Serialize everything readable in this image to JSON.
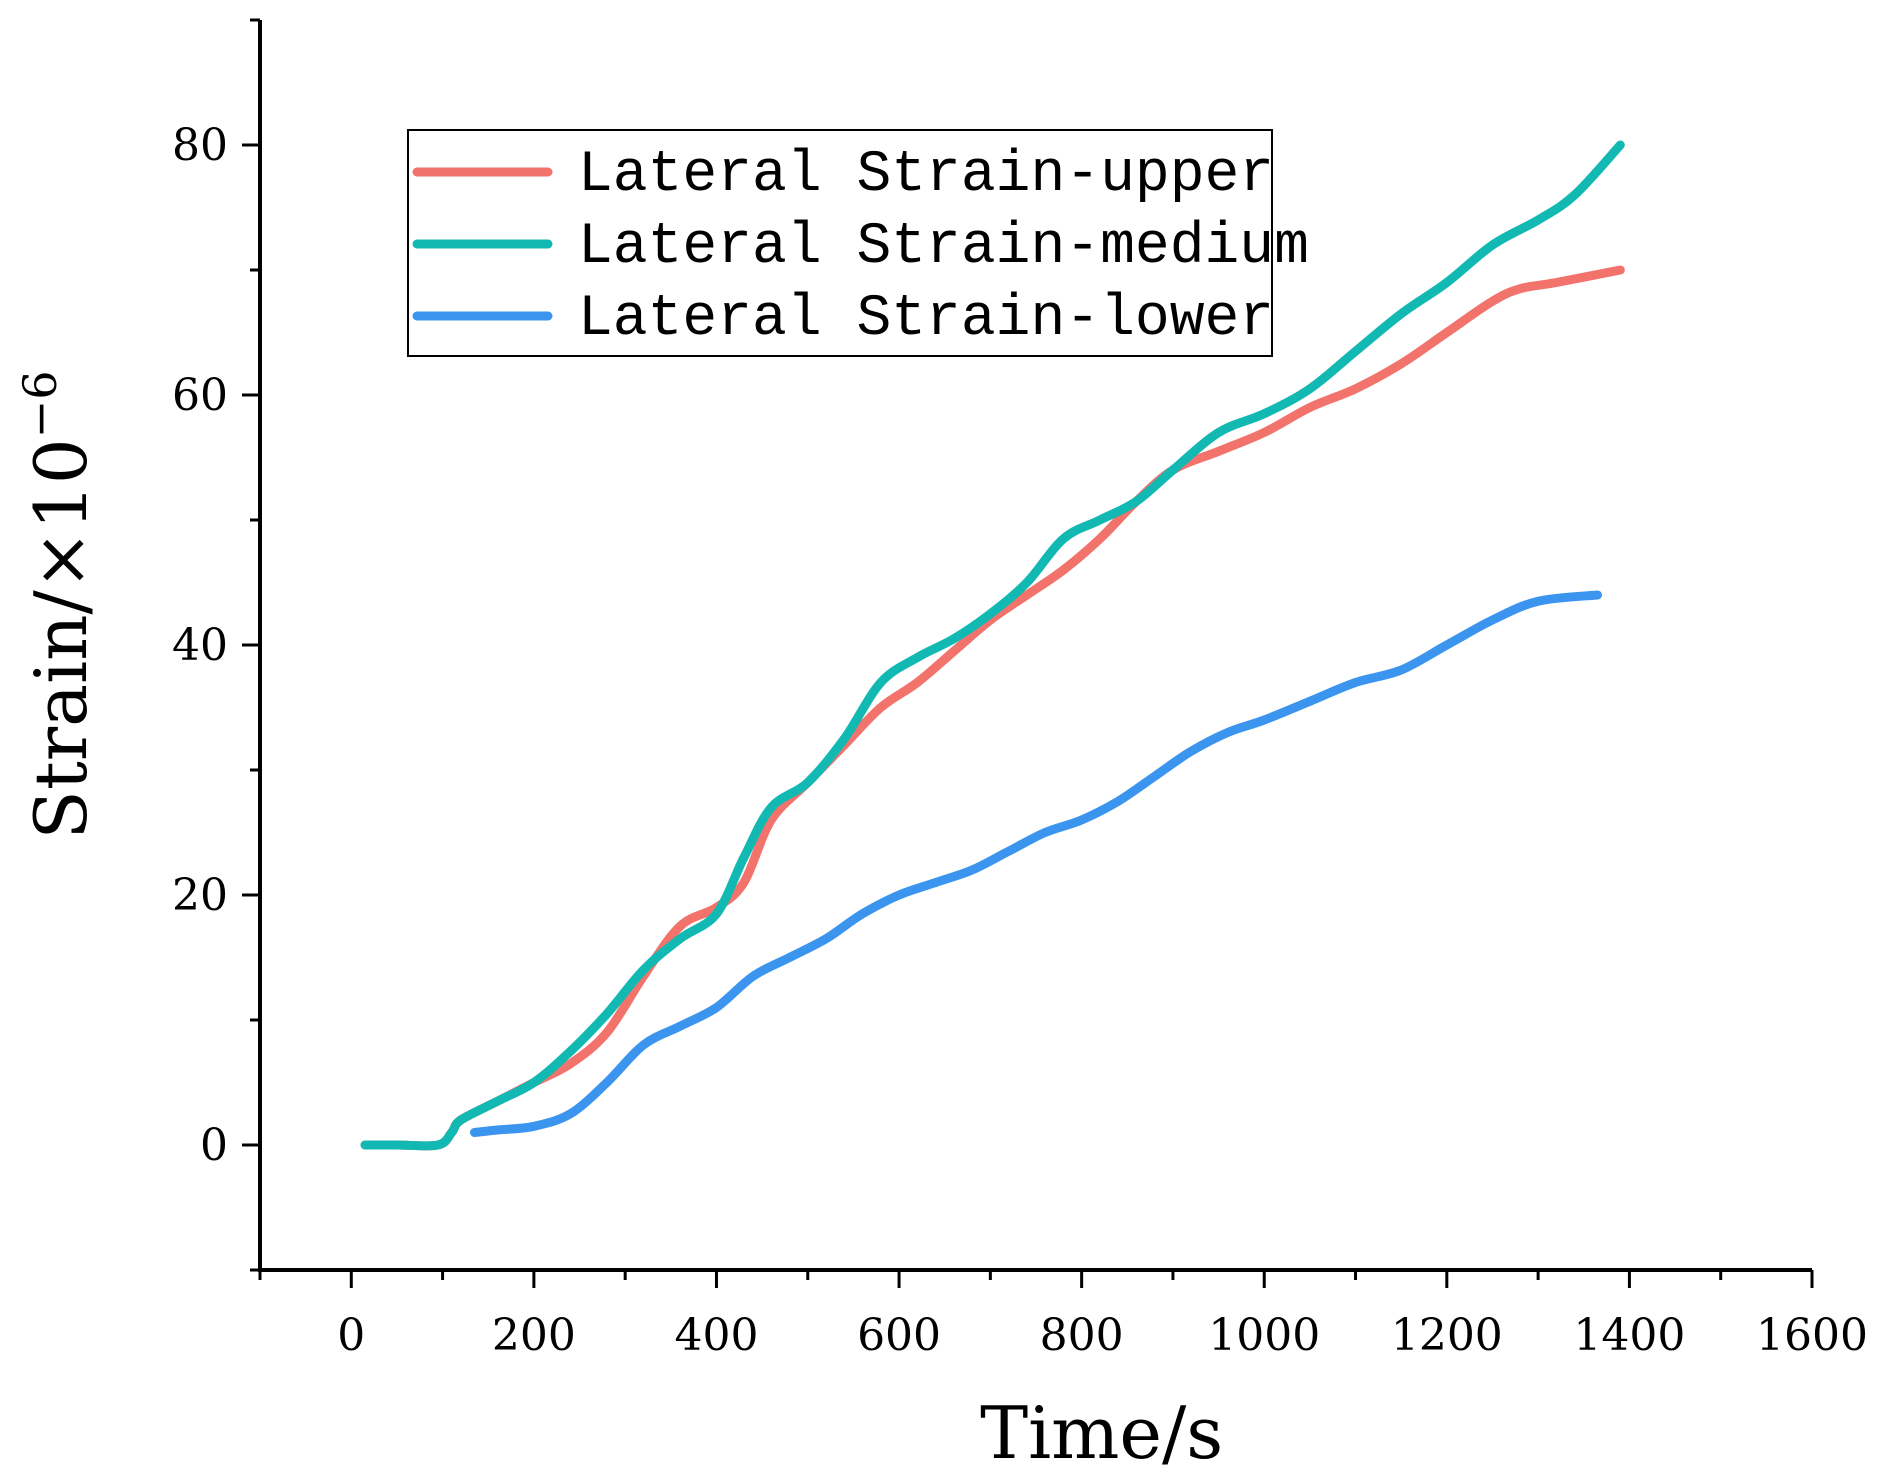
{
  "chart_data": {
    "type": "line",
    "title": "",
    "xlabel": "Time/s",
    "ylabel": "Strain/×10",
    "ylabel_exponent": "−6",
    "xlim": [
      -100,
      1600
    ],
    "ylim": [
      -10,
      90
    ],
    "x_ticks": [
      0,
      200,
      400,
      600,
      800,
      1000,
      1200,
      1400,
      1600
    ],
    "y_ticks": [
      0,
      20,
      40,
      60,
      80
    ],
    "legend_position": "top-left",
    "series": [
      {
        "name": "Lateral Strain-upper",
        "color": "#f2736b",
        "x": [
          15,
          50,
          95,
          110,
          120,
          160,
          200,
          240,
          280,
          320,
          360,
          400,
          430,
          460,
          500,
          540,
          580,
          620,
          660,
          700,
          740,
          780,
          820,
          860,
          900,
          950,
          1000,
          1050,
          1100,
          1150,
          1200,
          1250,
          1280,
          1320,
          1390
        ],
        "y": [
          0,
          0,
          0,
          1,
          2,
          3.5,
          5,
          6.5,
          9,
          13.5,
          17.5,
          19,
          21,
          26,
          29,
          32,
          35,
          37,
          39.5,
          42,
          44,
          46,
          48.5,
          51.5,
          54,
          55.5,
          57,
          59,
          60.5,
          62.5,
          65,
          67.5,
          68.5,
          69,
          70
        ]
      },
      {
        "name": "Lateral Strain-medium",
        "color": "#12b9b3",
        "x": [
          15,
          50,
          95,
          110,
          120,
          160,
          200,
          240,
          280,
          320,
          360,
          400,
          430,
          460,
          500,
          540,
          580,
          620,
          660,
          700,
          740,
          780,
          820,
          860,
          900,
          950,
          1000,
          1050,
          1100,
          1150,
          1200,
          1250,
          1300,
          1340,
          1390
        ],
        "y": [
          0,
          0,
          0,
          1,
          2,
          3.5,
          5,
          7.5,
          10.5,
          14,
          16.5,
          18.5,
          23,
          27,
          29,
          32.5,
          37,
          39,
          40.5,
          42.5,
          45,
          48.5,
          50,
          51.5,
          54,
          57,
          58.5,
          60.5,
          63.5,
          66.5,
          69,
          72,
          74,
          76,
          80
        ]
      },
      {
        "name": "Lateral Strain-lower",
        "color": "#3b95ef",
        "x": [
          135,
          160,
          200,
          240,
          280,
          320,
          360,
          400,
          440,
          480,
          520,
          560,
          600,
          640,
          680,
          720,
          760,
          800,
          840,
          880,
          920,
          960,
          1000,
          1050,
          1100,
          1150,
          1200,
          1250,
          1300,
          1365
        ],
        "y": [
          1,
          1.2,
          1.5,
          2.5,
          5,
          8,
          9.5,
          11,
          13.5,
          15,
          16.5,
          18.5,
          20,
          21,
          22,
          23.5,
          25,
          26,
          27.5,
          29.5,
          31.5,
          33,
          34,
          35.5,
          37,
          38,
          40,
          42,
          43.5,
          44
        ]
      }
    ]
  }
}
